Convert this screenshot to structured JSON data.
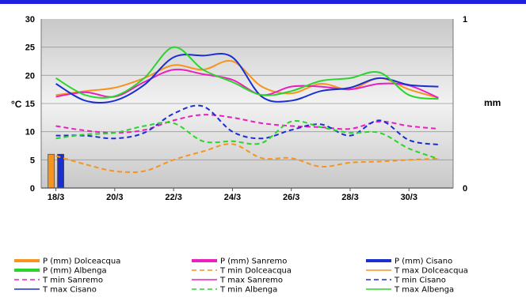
{
  "chart_data": {
    "type": "line",
    "ylabel": "°C",
    "y2label": "mm",
    "ylim": [
      0,
      30
    ],
    "y2lim": [
      0,
      1
    ],
    "yticks": [
      "0",
      "5",
      "10",
      "15",
      "20",
      "25",
      "30"
    ],
    "y2ticks": [
      "0",
      "1"
    ],
    "x_start": 17.5,
    "x_end": 31.5,
    "xtick_positions": [
      18,
      20,
      22,
      24,
      26,
      28,
      30
    ],
    "xticks": [
      "18/3",
      "20/3",
      "22/3",
      "24/3",
      "26/3",
      "28/3",
      "30/3"
    ],
    "grid": true,
    "legend_position": "bottom",
    "series": [
      {
        "name": "P (mm) Dolceacqua",
        "kind": "bar",
        "color": "#f7941d",
        "x": [
          18
        ],
        "values": [
          6
        ]
      },
      {
        "name": "P (mm) Sanremo",
        "kind": "bar",
        "color": "#ec1ec2",
        "x": [],
        "values": []
      },
      {
        "name": "P (mm) Cisano",
        "kind": "bar",
        "color": "#1a2fd0",
        "x": [
          18
        ],
        "values": [
          6
        ]
      },
      {
        "name": "P (mm) Albenga",
        "kind": "bar",
        "color": "#2bd42b",
        "x": [],
        "values": []
      },
      {
        "name": "T min Dolceacqua",
        "kind": "line",
        "dash": true,
        "color": "#f7941d",
        "x": [
          18,
          19,
          20,
          21,
          22,
          23,
          24,
          25,
          26,
          27,
          28,
          29,
          30,
          31
        ],
        "values": [
          5.7,
          4.2,
          3.0,
          3.0,
          5.0,
          6.5,
          7.8,
          5.3,
          5.3,
          3.8,
          4.5,
          4.7,
          5.0,
          5.2
        ]
      },
      {
        "name": "T max Dolceacqua",
        "kind": "line",
        "dash": false,
        "color": "#f7941d",
        "x": [
          18,
          19,
          20,
          21,
          22,
          23,
          24,
          25,
          26,
          27,
          28,
          29,
          30,
          31
        ],
        "values": [
          16.5,
          17.2,
          17.8,
          19.5,
          21.8,
          21.0,
          22.5,
          18.0,
          16.8,
          18.5,
          17.5,
          19.5,
          17.5,
          16.0
        ]
      },
      {
        "name": "T min Sanremo",
        "kind": "line",
        "dash": true,
        "color": "#ec1ec2",
        "x": [
          18,
          19,
          20,
          21,
          22,
          23,
          24,
          25,
          26,
          27,
          28,
          29,
          30,
          31
        ],
        "values": [
          11.0,
          10.2,
          9.8,
          10.3,
          12.0,
          13.0,
          12.5,
          11.5,
          11.0,
          10.8,
          10.5,
          11.8,
          11.0,
          10.5
        ]
      },
      {
        "name": "T max Sanremo",
        "kind": "line",
        "dash": false,
        "color": "#ec1ec2",
        "x": [
          18,
          19,
          20,
          21,
          22,
          23,
          24,
          25,
          26,
          27,
          28,
          29,
          30,
          31
        ],
        "values": [
          16.2,
          17.0,
          16.2,
          18.8,
          21.0,
          20.2,
          19.2,
          16.5,
          18.0,
          18.0,
          17.5,
          18.5,
          18.2,
          16.0
        ]
      },
      {
        "name": "T min Cisano",
        "kind": "line",
        "dash": true,
        "color": "#1a2fd0",
        "x": [
          18,
          19,
          20,
          21,
          22,
          23,
          24,
          25,
          26,
          27,
          28,
          29,
          30,
          31
        ],
        "values": [
          9.3,
          9.3,
          8.8,
          9.8,
          13.2,
          14.5,
          10.0,
          8.8,
          10.3,
          11.3,
          9.3,
          12.0,
          8.5,
          7.7
        ]
      },
      {
        "name": "T max Cisano",
        "kind": "line",
        "dash": false,
        "color": "#1a2fd0",
        "x": [
          18,
          19,
          20,
          21,
          22,
          23,
          24,
          25,
          26,
          27,
          28,
          29,
          30,
          31
        ],
        "values": [
          18.5,
          15.5,
          15.5,
          18.3,
          23.2,
          23.5,
          23.2,
          16.2,
          15.5,
          17.2,
          17.8,
          19.5,
          18.3,
          18.0
        ]
      },
      {
        "name": "T min Albenga",
        "kind": "line",
        "dash": true,
        "color": "#2bd42b",
        "x": [
          18,
          19,
          20,
          21,
          22,
          23,
          24,
          25,
          26,
          27,
          28,
          29,
          30,
          31
        ],
        "values": [
          8.8,
          9.5,
          9.8,
          11.0,
          11.5,
          8.3,
          8.3,
          8.0,
          11.8,
          10.8,
          9.8,
          9.8,
          7.0,
          5.2
        ]
      },
      {
        "name": "T max Albenga",
        "kind": "line",
        "dash": false,
        "color": "#2bd42b",
        "x": [
          18,
          19,
          20,
          21,
          22,
          23,
          24,
          25,
          26,
          27,
          28,
          29,
          30,
          31
        ],
        "values": [
          19.5,
          16.5,
          16.3,
          19.5,
          25.0,
          21.0,
          18.8,
          16.5,
          17.2,
          19.0,
          19.5,
          20.5,
          16.5,
          15.8
        ]
      }
    ],
    "legend": [
      {
        "label": "P (mm) Dolceacqua",
        "color": "#f7941d",
        "style": "bar"
      },
      {
        "label": "P (mm) Sanremo",
        "color": "#ec1ec2",
        "style": "bar"
      },
      {
        "label": "P (mm) Cisano",
        "color": "#1a2fd0",
        "style": "bar"
      },
      {
        "label": "P (mm) Albenga",
        "color": "#2bd42b",
        "style": "bar"
      },
      {
        "label": "T min Dolceacqua",
        "color": "#f7941d",
        "style": "dash"
      },
      {
        "label": "T max Dolceacqua",
        "color": "#f7941d",
        "style": "solid"
      },
      {
        "label": "T min Sanremo",
        "color": "#ec1ec2",
        "style": "dash"
      },
      {
        "label": "T max Sanremo",
        "color": "#ec1ec2",
        "style": "solid"
      },
      {
        "label": "T min Cisano",
        "color": "#1a2fd0",
        "style": "dash"
      },
      {
        "label": "T max Cisano",
        "color": "#1a2fd0",
        "style": "solid"
      },
      {
        "label": "T min Albenga",
        "color": "#2bd42b",
        "style": "dash"
      },
      {
        "label": "T max Albenga",
        "color": "#2bd42b",
        "style": "solid"
      }
    ],
    "colors": {
      "plot_background": "#cfcfcf",
      "gridline": "#999999",
      "header_bar": "#1f1fe0"
    }
  }
}
